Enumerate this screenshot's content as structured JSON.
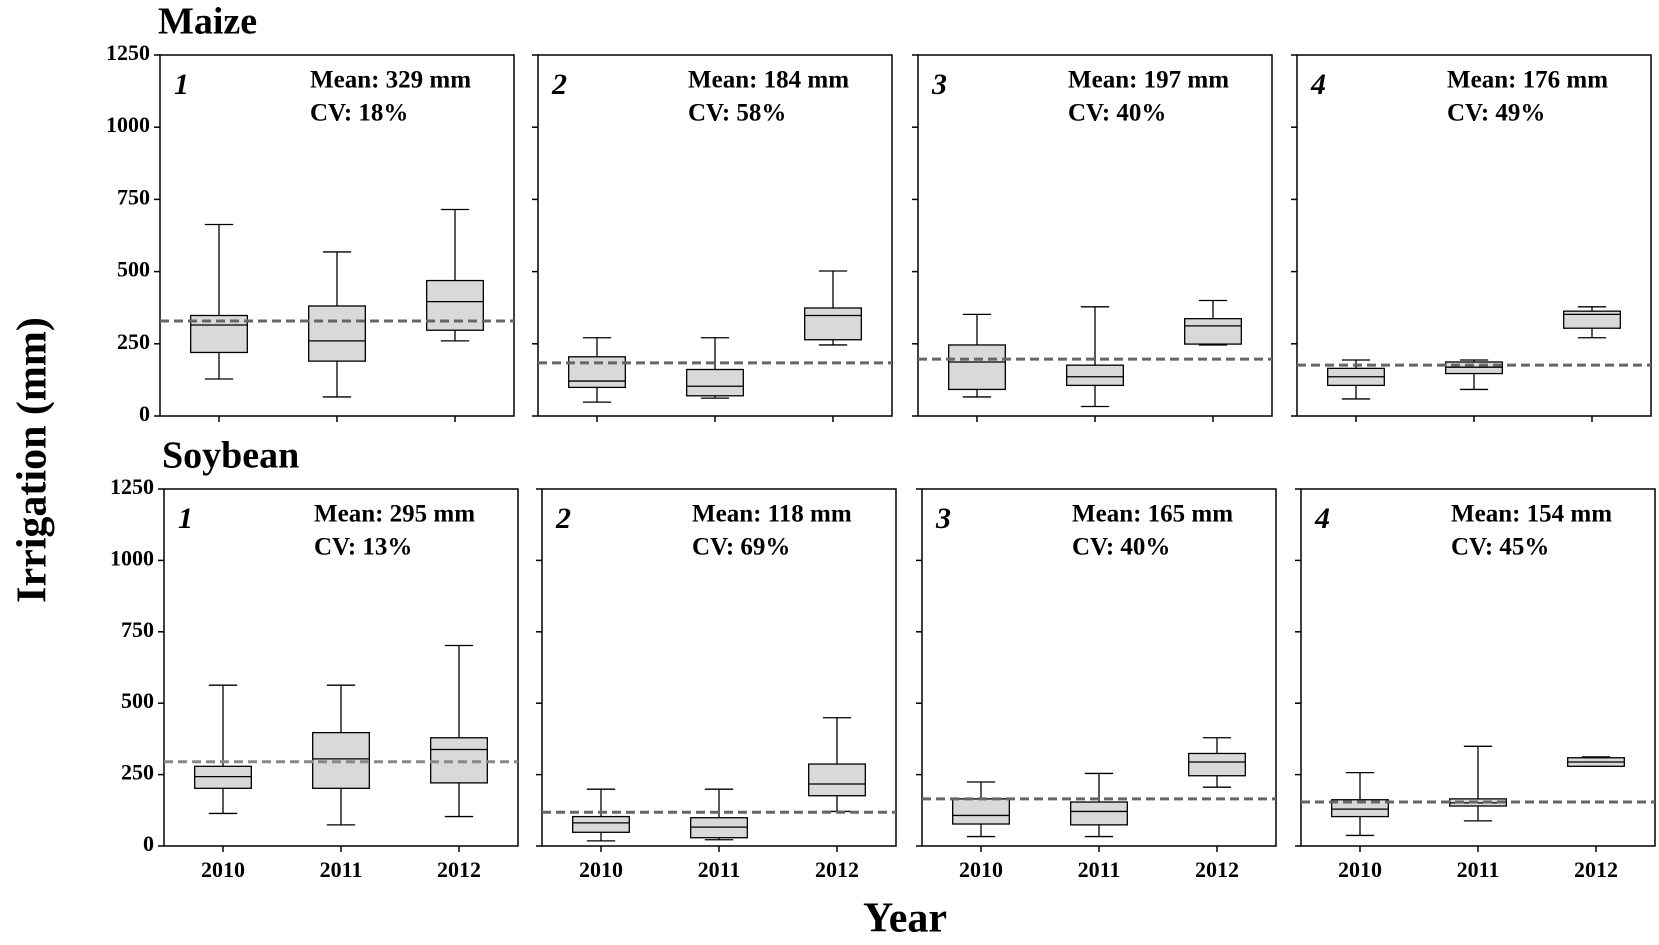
{
  "figure": {
    "ylabel": "Irrigation (mm)",
    "xlabel": "Year"
  },
  "chart_data": [
    {
      "type": "box",
      "title": "Maize",
      "panel_label": "1",
      "mean": 329,
      "mean_label": "Mean: 329 mm",
      "cv_label": "CV: 18%",
      "categories": [
        null,
        null,
        null
      ],
      "ylim": [
        0,
        1250
      ],
      "yticks": [
        0,
        250,
        500,
        750,
        1000,
        1250
      ],
      "ytick_labels": true,
      "color": "#d9d9d9",
      "mean_color": "#666666",
      "boxes": [
        {
          "whislo": 128,
          "q1": 220,
          "med": 315,
          "q3": 348,
          "whishi": 663
        },
        {
          "whislo": 66,
          "q1": 190,
          "med": 260,
          "q3": 381,
          "whishi": 568
        },
        {
          "whislo": 260,
          "q1": 297,
          "med": 396,
          "q3": 469,
          "whishi": 715
        }
      ]
    },
    {
      "type": "box",
      "panel_label": "2",
      "mean": 184,
      "mean_label": "Mean: 184 mm",
      "cv_label": "CV: 58%",
      "categories": [
        null,
        null,
        null
      ],
      "ylim": [
        0,
        1250
      ],
      "yticks": [
        0,
        250,
        500,
        750,
        1000,
        1250
      ],
      "ytick_labels": false,
      "color": "#d9d9d9",
      "mean_color": "#666666",
      "boxes": [
        {
          "whislo": 48,
          "q1": 99,
          "med": 121,
          "q3": 205,
          "whishi": 271
        },
        {
          "whislo": 62,
          "q1": 70,
          "med": 103,
          "q3": 161,
          "whishi": 271
        },
        {
          "whislo": 246,
          "q1": 264,
          "med": 348,
          "q3": 374,
          "whishi": 502
        }
      ]
    },
    {
      "type": "box",
      "panel_label": "3",
      "mean": 197,
      "mean_label": "Mean: 197 mm",
      "cv_label": "CV: 40%",
      "categories": [
        null,
        null,
        null
      ],
      "ylim": [
        0,
        1250
      ],
      "yticks": [
        0,
        250,
        500,
        750,
        1000,
        1250
      ],
      "ytick_labels": false,
      "color": "#d9d9d9",
      "mean_color": "#666666",
      "boxes": [
        {
          "whislo": 66,
          "q1": 92,
          "med": 187,
          "q3": 246,
          "whishi": 352
        },
        {
          "whislo": 33,
          "q1": 106,
          "med": 136,
          "q3": 176,
          "whishi": 378
        },
        {
          "whislo": 246,
          "q1": 249,
          "med": 312,
          "q3": 337,
          "whishi": 400
        }
      ]
    },
    {
      "type": "box",
      "panel_label": "4",
      "mean": 176,
      "mean_label": "Mean: 176 mm",
      "cv_label": "CV: 49%",
      "categories": [
        null,
        null,
        null
      ],
      "ylim": [
        0,
        1250
      ],
      "yticks": [
        0,
        250,
        500,
        750,
        1000,
        1250
      ],
      "ytick_labels": false,
      "color": "#d9d9d9",
      "mean_color": "#666666",
      "boxes": [
        {
          "whislo": 59,
          "q1": 106,
          "med": 136,
          "q3": 165,
          "whishi": 194
        },
        {
          "whislo": 92,
          "q1": 147,
          "med": 169,
          "q3": 187,
          "whishi": 194
        },
        {
          "whislo": 271,
          "q1": 304,
          "med": 352,
          "q3": 363,
          "whishi": 378
        }
      ]
    },
    {
      "type": "box",
      "title": "Soybean",
      "panel_label": "1",
      "mean": 295,
      "mean_label": "Mean: 295 mm",
      "cv_label": "CV: 13%",
      "categories": [
        "2010",
        "2011",
        "2012"
      ],
      "ylim": [
        0,
        1250
      ],
      "yticks": [
        0,
        250,
        500,
        750,
        1000,
        1250
      ],
      "ytick_labels": true,
      "color": "#d9d9d9",
      "mean_color": "#888888",
      "boxes": [
        {
          "whislo": 114,
          "q1": 202,
          "med": 243,
          "q3": 279,
          "whishi": 563
        },
        {
          "whislo": 74,
          "q1": 202,
          "med": 305,
          "q3": 397,
          "whishi": 563
        },
        {
          "whislo": 103,
          "q1": 221,
          "med": 338,
          "q3": 379,
          "whishi": 702
        }
      ]
    },
    {
      "type": "box",
      "panel_label": "2",
      "mean": 118,
      "mean_label": "Mean: 118 mm",
      "cv_label": "CV: 69%",
      "categories": [
        "2010",
        "2011",
        "2012"
      ],
      "ylim": [
        0,
        1250
      ],
      "yticks": [
        0,
        250,
        500,
        750,
        1000,
        1250
      ],
      "ytick_labels": false,
      "color": "#d9d9d9",
      "mean_color": "#666666",
      "boxes": [
        {
          "whislo": 18,
          "q1": 48,
          "med": 81,
          "q3": 103,
          "whishi": 199
        },
        {
          "whislo": 22,
          "q1": 29,
          "med": 66,
          "q3": 99,
          "whishi": 199
        },
        {
          "whislo": 121,
          "q1": 176,
          "med": 217,
          "q3": 287,
          "whishi": 449
        }
      ]
    },
    {
      "type": "box",
      "panel_label": "3",
      "mean": 165,
      "mean_label": "Mean: 165 mm",
      "cv_label": "CV: 40%",
      "categories": [
        "2010",
        "2011",
        "2012"
      ],
      "ylim": [
        0,
        1250
      ],
      "yticks": [
        0,
        250,
        500,
        750,
        1000,
        1250
      ],
      "ytick_labels": false,
      "color": "#d9d9d9",
      "mean_color": "#666666",
      "boxes": [
        {
          "whislo": 33,
          "q1": 77,
          "med": 107,
          "q3": 165,
          "whishi": 224
        },
        {
          "whislo": 33,
          "q1": 74,
          "med": 121,
          "q3": 154,
          "whishi": 254
        },
        {
          "whislo": 206,
          "q1": 246,
          "med": 294,
          "q3": 324,
          "whishi": 379
        }
      ]
    },
    {
      "type": "box",
      "panel_label": "4",
      "mean": 154,
      "mean_label": "Mean: 154 mm",
      "cv_label": "CV: 45%",
      "categories": [
        "2010",
        "2011",
        "2012"
      ],
      "ylim": [
        0,
        1250
      ],
      "yticks": [
        0,
        250,
        500,
        750,
        1000,
        1250
      ],
      "ytick_labels": false,
      "color": "#d9d9d9",
      "mean_color": "#666666",
      "boxes": [
        {
          "whislo": 37,
          "q1": 103,
          "med": 129,
          "q3": 162,
          "whishi": 257
        },
        {
          "whislo": 88,
          "q1": 140,
          "med": 151,
          "q3": 165,
          "whishi": 349
        },
        {
          "whislo": 279,
          "q1": 279,
          "med": 294,
          "q3": 309,
          "whishi": 312
        }
      ]
    }
  ]
}
